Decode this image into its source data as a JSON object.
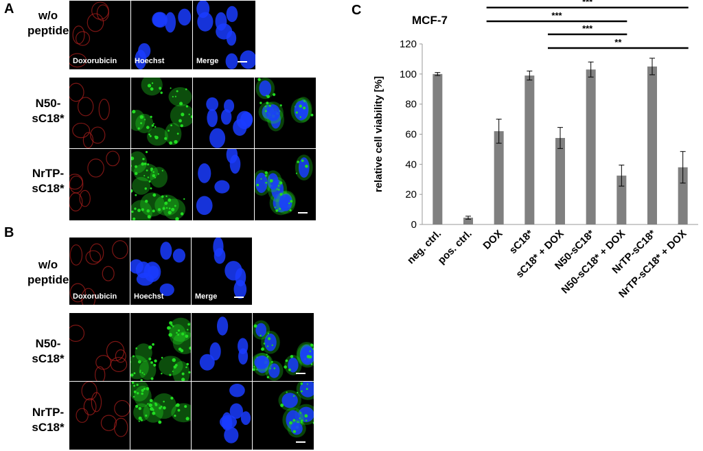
{
  "panels": {
    "a": {
      "letter": "A",
      "rows": [
        {
          "label_line1": "w/o",
          "label_line2": "peptide",
          "tiles": [
            "Doxorubicin",
            "Hoechst",
            "Merge"
          ]
        },
        {
          "label_line1": "N50-",
          "label_line2": "sC18*",
          "tiles": [
            "",
            "",
            "",
            ""
          ]
        },
        {
          "label_line1": "NrTP-",
          "label_line2": "sC18*",
          "tiles": [
            "",
            "",
            "",
            ""
          ]
        }
      ]
    },
    "b": {
      "letter": "B",
      "rows": [
        {
          "label_line1": "w/o",
          "label_line2": "peptide",
          "tiles": [
            "Doxorubicin",
            "Hoechst",
            "Merge"
          ]
        },
        {
          "label_line1": "N50-",
          "label_line2": "sC18*",
          "tiles": [
            "",
            "",
            "",
            ""
          ]
        },
        {
          "label_line1": "NrTP-",
          "label_line2": "sC18*",
          "tiles": [
            "",
            "",
            "",
            ""
          ]
        }
      ]
    },
    "c": {
      "letter": "C"
    }
  },
  "colors": {
    "doxorubicin": "#b0201c",
    "hoechst": "#1a3cff",
    "gfp": "#22dd22",
    "bar": "#808080"
  },
  "chart_data": {
    "type": "bar",
    "title": "MCF-7",
    "ylabel": "relative cell viability [%]",
    "xlabel": "",
    "ylim": [
      0,
      120
    ],
    "yticks": [
      0,
      20,
      40,
      60,
      80,
      100,
      120
    ],
    "grid": false,
    "categories": [
      "neg. ctrl.",
      "pos. ctrl.",
      "DOX",
      "sC18*",
      "sC18* + DOX",
      "N50-sC18*",
      "N50-sC18* + DOX",
      "NrTP-sC18*",
      "NrTP-sC18* + DOX"
    ],
    "values": [
      100,
      4.5,
      62,
      99,
      57.5,
      103,
      32.5,
      105,
      38
    ],
    "errors": [
      1,
      1,
      8,
      3,
      7,
      5,
      7,
      5.5,
      10.5
    ],
    "significance": [
      {
        "from": "DOX",
        "to": "NrTP-sC18* + DOX",
        "label": "***"
      },
      {
        "from": "DOX",
        "to": "N50-sC18* + DOX",
        "label": "***"
      },
      {
        "from": "sC18* + DOX",
        "to": "N50-sC18* + DOX",
        "label": "***"
      },
      {
        "from": "sC18* + DOX",
        "to": "NrTP-sC18* + DOX",
        "label": "**"
      }
    ]
  }
}
